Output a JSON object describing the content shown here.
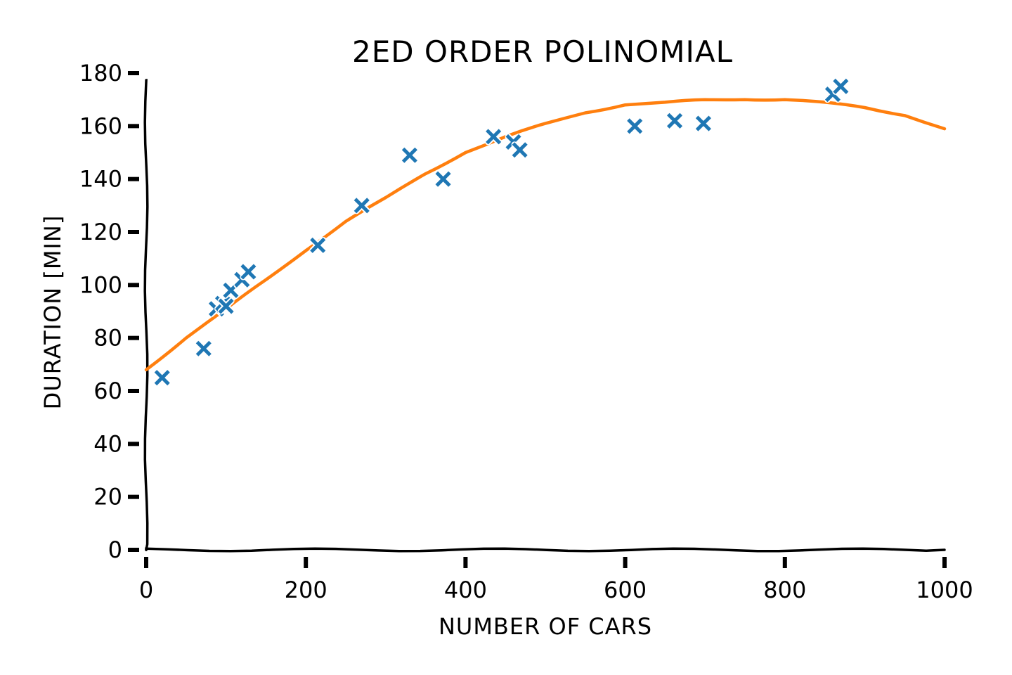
{
  "chart_data": {
    "type": "scatter",
    "title": "2ED ORDER POLINOMIAL",
    "xlabel": "NUMBER OF CARS",
    "ylabel": "DURATION [MIN]",
    "xlim": [
      0,
      1000
    ],
    "ylim": [
      0,
      180
    ],
    "x_ticks": [
      0,
      200,
      400,
      600,
      800,
      1000
    ],
    "y_ticks": [
      0,
      20,
      40,
      60,
      80,
      100,
      120,
      140,
      160,
      180
    ],
    "grid": false,
    "legend": "none",
    "series": [
      {
        "kind": "scatter",
        "marker": "x",
        "color": "#1f77b4",
        "points": [
          [
            20,
            65
          ],
          [
            72,
            76
          ],
          [
            88,
            91
          ],
          [
            96,
            93
          ],
          [
            100,
            92
          ],
          [
            106,
            98
          ],
          [
            120,
            102
          ],
          [
            128,
            105
          ],
          [
            215,
            115
          ],
          [
            270,
            130
          ],
          [
            330,
            149
          ],
          [
            372,
            140
          ],
          [
            435,
            156
          ],
          [
            460,
            154
          ],
          [
            468,
            151
          ],
          [
            612,
            160
          ],
          [
            662,
            162
          ],
          [
            698,
            161
          ],
          [
            860,
            172
          ],
          [
            870,
            175
          ]
        ]
      },
      {
        "kind": "line",
        "color": "#ff7f0e",
        "x": [
          0,
          50,
          100,
          150,
          200,
          250,
          300,
          350,
          400,
          450,
          500,
          550,
          600,
          650,
          700,
          750,
          800,
          850,
          900,
          950,
          1000
        ],
        "y": [
          68,
          80,
          91,
          102,
          113,
          124,
          133,
          142,
          150,
          156,
          161,
          165,
          168,
          169,
          170,
          170,
          170,
          169,
          167,
          164,
          159
        ]
      }
    ]
  }
}
